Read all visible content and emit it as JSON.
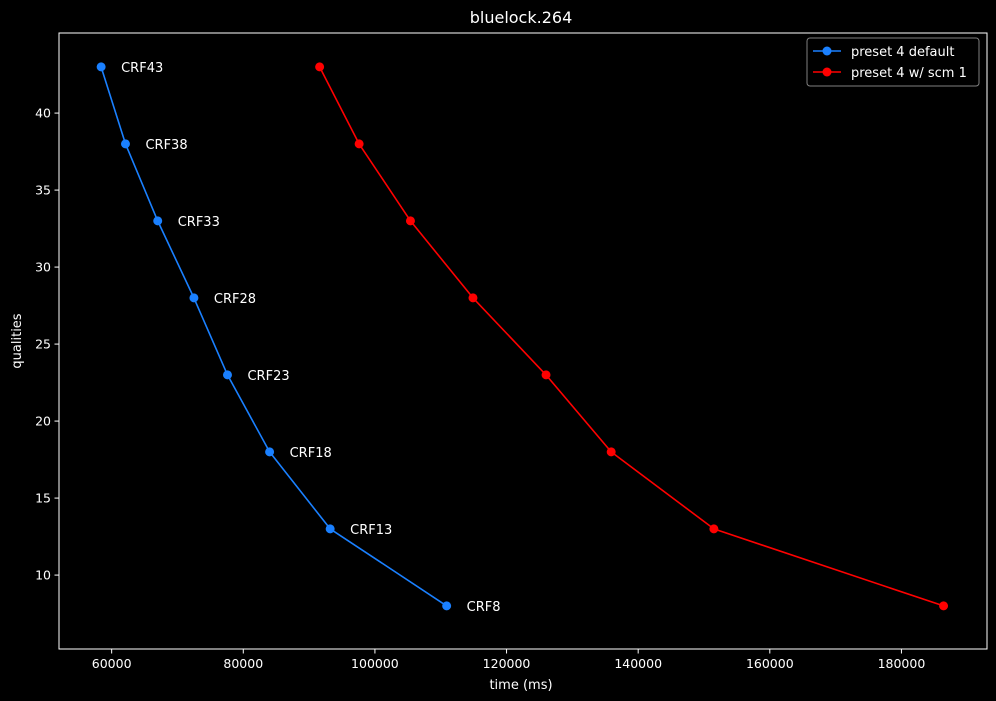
{
  "chart_data": {
    "type": "line",
    "title": "bluelock.264",
    "xlabel": "time (ms)",
    "ylabel": "qualities",
    "xlim": [
      52000,
      193000
    ],
    "ylim": [
      5.2,
      45.2
    ],
    "xticks": [
      60000,
      80000,
      100000,
      120000,
      140000,
      160000,
      180000
    ],
    "yticks": [
      10,
      15,
      20,
      25,
      30,
      35,
      40
    ],
    "grid": false,
    "legend_position": "top-right",
    "series": [
      {
        "name": "preset 4 default",
        "color": "#1a80ff",
        "x": [
          58400,
          62100,
          67000,
          72500,
          77600,
          84000,
          93200,
          110900
        ],
        "y": [
          43,
          38,
          33,
          28,
          23,
          18,
          13,
          8
        ],
        "point_labels": [
          "CRF43",
          "CRF38",
          "CRF33",
          "CRF28",
          "CRF23",
          "CRF18",
          "CRF13",
          "CRF8"
        ]
      },
      {
        "name": "preset 4 w/ scm 1",
        "color": "#ff0000",
        "x": [
          91600,
          97600,
          105400,
          114900,
          126000,
          135900,
          151500,
          186400
        ],
        "y": [
          43,
          38,
          33,
          28,
          23,
          18,
          13,
          8
        ]
      }
    ]
  },
  "colors": {
    "background": "#000000",
    "foreground": "#ffffff",
    "legend_border": "#808080"
  }
}
